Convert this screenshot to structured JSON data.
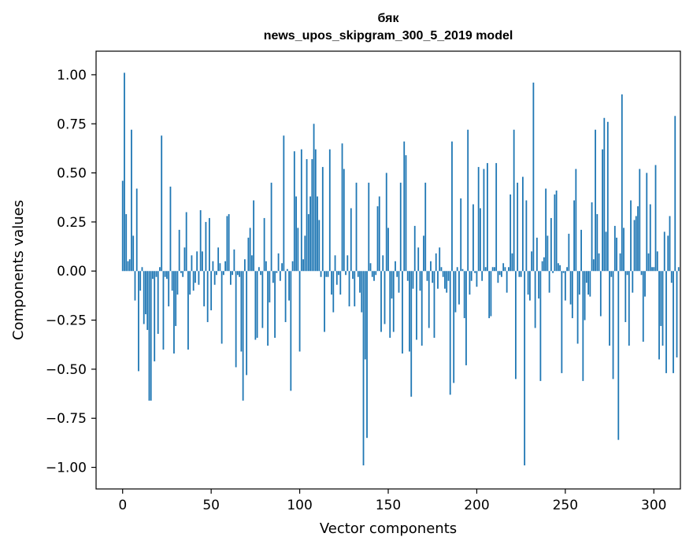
{
  "chart_data": {
    "type": "bar",
    "title": "бяк",
    "subtitle": "news_upos_skipgram_300_5_2019 model",
    "xlabel": "Vector components",
    "ylabel": "Components values",
    "xlim": [
      -15,
      315
    ],
    "ylim": [
      -1.11,
      1.12
    ],
    "xticks": [
      0,
      50,
      100,
      150,
      200,
      250,
      300
    ],
    "yticks": [
      1.0,
      0.75,
      0.5,
      0.25,
      0.0,
      -0.25,
      -0.5,
      -0.75,
      -1.0
    ],
    "ytick_labels": [
      "1.00",
      "0.75",
      "0.50",
      "0.25",
      "0.00",
      "−0.25",
      "−0.50",
      "−0.75",
      "−1.00"
    ],
    "bar_color": "#1f77b4",
    "grid": false,
    "values": [
      0.46,
      1.01,
      0.29,
      0.05,
      0.06,
      0.72,
      0.18,
      -0.15,
      0.42,
      -0.51,
      -0.1,
      0.02,
      -0.27,
      -0.22,
      -0.3,
      -0.66,
      -0.66,
      -0.04,
      -0.46,
      -0.03,
      -0.32,
      0.02,
      0.69,
      -0.4,
      -0.03,
      -0.04,
      -0.18,
      0.43,
      -0.1,
      -0.42,
      -0.28,
      -0.12,
      0.21,
      -0.01,
      -0.03,
      0.12,
      0.3,
      -0.4,
      -0.12,
      0.08,
      -0.1,
      -0.06,
      0.1,
      -0.07,
      0.31,
      0.1,
      -0.18,
      0.25,
      -0.26,
      0.27,
      -0.2,
      0.05,
      -0.07,
      -0.02,
      0.12,
      0.04,
      -0.37,
      -0.02,
      0.05,
      0.28,
      0.29,
      -0.07,
      -0.02,
      0.11,
      -0.49,
      -0.02,
      -0.03,
      -0.41,
      -0.66,
      0.06,
      -0.53,
      0.17,
      0.22,
      0.08,
      0.36,
      -0.35,
      -0.34,
      0.02,
      -0.02,
      -0.29,
      0.27,
      0.05,
      -0.38,
      -0.16,
      0.45,
      -0.06,
      -0.34,
      -0.01,
      0.09,
      -0.05,
      0.04,
      0.69,
      -0.26,
      0.01,
      -0.15,
      -0.61,
      0.05,
      0.61,
      0.38,
      0.22,
      -0.41,
      0.62,
      0.06,
      0.18,
      0.57,
      0.29,
      0.38,
      0.57,
      0.75,
      0.62,
      0.38,
      0.26,
      -0.03,
      0.53,
      -0.31,
      -0.03,
      -0.03,
      0.62,
      -0.12,
      -0.21,
      0.08,
      -0.07,
      -0.02,
      -0.12,
      0.65,
      0.52,
      -0.02,
      0.08,
      -0.18,
      0.32,
      -0.04,
      -0.18,
      0.45,
      -0.03,
      -0.11,
      -0.21,
      -0.99,
      -0.45,
      -0.85,
      0.45,
      0.04,
      -0.03,
      -0.05,
      -0.02,
      0.33,
      0.38,
      -0.31,
      0.08,
      -0.27,
      0.5,
      0.22,
      -0.34,
      -0.14,
      -0.31,
      0.05,
      -0.03,
      -0.11,
      0.45,
      -0.42,
      0.66,
      0.59,
      -0.05,
      -0.41,
      -0.64,
      -0.09,
      0.23,
      -0.35,
      0.12,
      -0.1,
      -0.38,
      0.18,
      0.45,
      -0.05,
      -0.29,
      0.05,
      -0.06,
      -0.34,
      0.09,
      -0.09,
      0.12,
      0.02,
      -0.03,
      -0.09,
      -0.11,
      -0.05,
      -0.63,
      0.66,
      -0.57,
      -0.21,
      0.02,
      -0.17,
      0.37,
      0.01,
      -0.24,
      -0.48,
      0.72,
      -0.12,
      -0.05,
      0.34,
      -0.01,
      -0.08,
      0.53,
      0.32,
      -0.05,
      0.52,
      0.02,
      0.55,
      -0.24,
      -0.23,
      0.02,
      0.02,
      0.55,
      -0.06,
      -0.02,
      -0.03,
      0.04,
      0.02,
      -0.11,
      0.02,
      0.39,
      0.09,
      0.72,
      -0.55,
      0.45,
      -0.03,
      -0.03,
      0.48,
      -0.99,
      0.36,
      -0.12,
      -0.15,
      0.1,
      0.96,
      -0.29,
      0.17,
      -0.14,
      -0.56,
      0.05,
      0.07,
      0.42,
      0.18,
      -0.11,
      0.27,
      -0.01,
      0.39,
      0.41,
      0.04,
      0.03,
      -0.52,
      -0.01,
      -0.15,
      0.02,
      0.19,
      -0.17,
      -0.24,
      0.36,
      0.52,
      -0.37,
      -0.12,
      0.21,
      -0.56,
      -0.25,
      -0.06,
      -0.12,
      -0.13,
      0.35,
      0.06,
      0.72,
      0.29,
      0.09,
      -0.23,
      0.62,
      0.78,
      0.2,
      0.76,
      -0.38,
      -0.03,
      -0.55,
      0.23,
      0.17,
      -0.86,
      0.09,
      0.9,
      0.22,
      -0.26,
      -0.02,
      -0.38,
      0.36,
      -0.11,
      0.26,
      0.28,
      0.33,
      0.52,
      -0.02,
      -0.36,
      -0.13,
      0.5,
      0.09,
      0.34,
      0.02,
      0.02,
      0.54,
      0.1,
      -0.45,
      -0.28,
      -0.38,
      0.2,
      -0.52,
      0.18,
      0.28,
      -0.06,
      -0.52,
      0.79,
      -0.44,
      0.02
    ]
  }
}
